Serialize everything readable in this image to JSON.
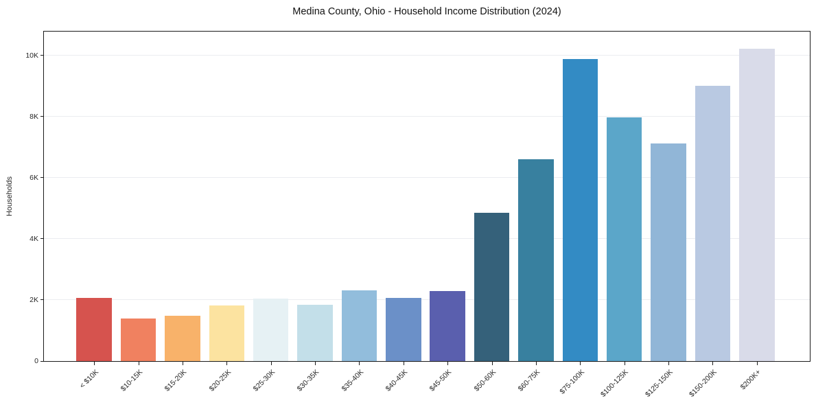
{
  "title": "Medina County, Ohio - Household Income Distribution (2024)",
  "chart_data": {
    "type": "bar",
    "title": "Medina County, Ohio - Household Income Distribution (2024)",
    "xlabel": "",
    "ylabel": "Households",
    "categories": [
      "< $10K",
      "$10-15K",
      "$15-20K",
      "$20-25K",
      "$25-30K",
      "$30-35K",
      "$35-40K",
      "$40-45K",
      "$45-50K",
      "$50-60K",
      "$60-75K",
      "$75-100K",
      "$100-125K",
      "$125-150K",
      "$150-200K",
      "$200K+"
    ],
    "values": [
      2060,
      1390,
      1480,
      1830,
      2050,
      1840,
      2320,
      2070,
      2300,
      4860,
      6610,
      9880,
      7980,
      7130,
      9000,
      10220
    ],
    "bar_colors": [
      "#d6534e",
      "#f08160",
      "#f8b26a",
      "#fce3a0",
      "#e6f1f4",
      "#c3dfe9",
      "#92bddc",
      "#6b90c8",
      "#5a5fae",
      "#35617a",
      "#38809f",
      "#338bc4",
      "#5ba6c9",
      "#91b6d7",
      "#b9c9e2",
      "#d9dbe9"
    ],
    "ylim": [
      0,
      10780
    ],
    "y_ticks": {
      "values": [
        0,
        2000,
        4000,
        6000,
        8000,
        10000
      ],
      "labels": [
        "0",
        "2K",
        "4K",
        "6K",
        "8K",
        "10K"
      ]
    },
    "x_tick_rotation": -45,
    "grid": "horizontal",
    "legend": "none"
  },
  "colors": {
    "background": "#ffffff",
    "spine": "#1a1a1a",
    "gridline": "#ebecf0",
    "tick_text": "#262626",
    "title_text": "#111111"
  }
}
